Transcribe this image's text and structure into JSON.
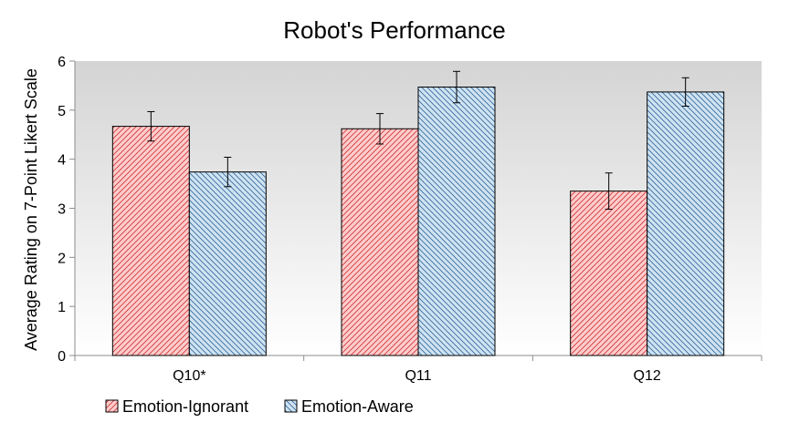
{
  "chart_data": {
    "type": "bar",
    "title": "Robot's Performance",
    "xlabel": "",
    "ylabel": "Average Rating on 7-Point Likert Scale",
    "categories": [
      "Q10*",
      "Q11",
      "Q12"
    ],
    "ylim": [
      0,
      6
    ],
    "yticks": [
      0,
      1,
      2,
      3,
      4,
      5,
      6
    ],
    "grid": false,
    "legend_position": "bottom-left",
    "series": [
      {
        "name": "Emotion-Ignorant",
        "values": [
          4.67,
          4.62,
          3.35
        ],
        "error": [
          0.3,
          0.31,
          0.37
        ],
        "fill": "#ffcccc",
        "hatch_color": "#cc3333"
      },
      {
        "name": "Emotion-Aware",
        "values": [
          3.74,
          5.47,
          5.37
        ],
        "error": [
          0.3,
          0.32,
          0.29
        ],
        "fill": "#cfe3f2",
        "hatch_color": "#336699"
      }
    ],
    "plot_background": [
      "#ffffff",
      "#d4d4d4"
    ]
  }
}
